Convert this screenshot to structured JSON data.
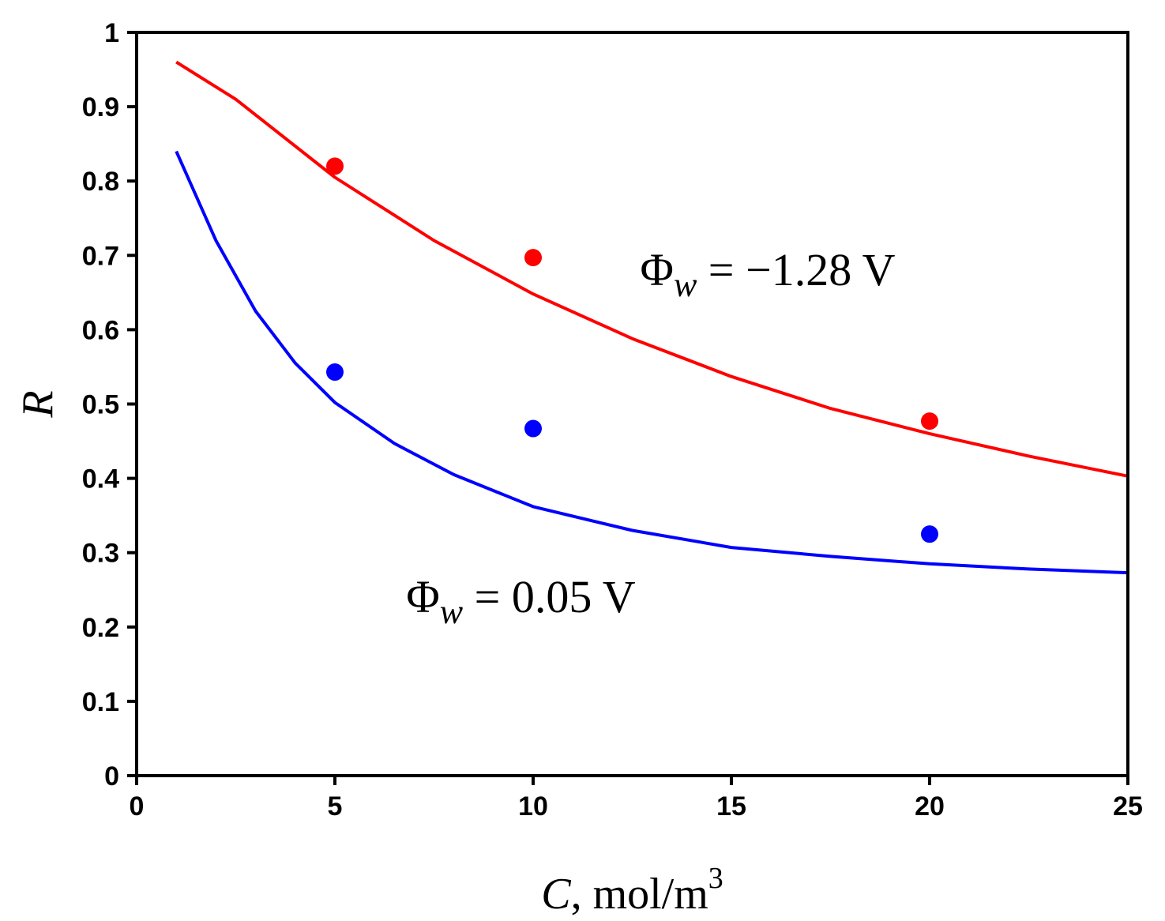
{
  "chart_data": {
    "type": "scatter",
    "title": "",
    "xlabel": "C, mol/m",
    "xlabel_var": "C",
    "xlabel_unit": "mol/m",
    "xlabel_sup": "3",
    "ylabel": "R",
    "xlim": [
      0,
      25
    ],
    "ylim": [
      0,
      1
    ],
    "xticks": [
      "0",
      "5",
      "10",
      "15",
      "20",
      "25"
    ],
    "yticks": [
      "0",
      "0.1",
      "0.2",
      "0.3",
      "0.4",
      "0.5",
      "0.6",
      "0.7",
      "0.8",
      "0.9",
      "1"
    ],
    "series": [
      {
        "name": "Φw = −1.28 V",
        "color": "#ff0000",
        "points": [
          {
            "x": 5,
            "y": 0.82
          },
          {
            "x": 10,
            "y": 0.697
          },
          {
            "x": 20,
            "y": 0.477
          }
        ],
        "fit_curve": [
          {
            "x": 1,
            "y": 0.96
          },
          {
            "x": 2.5,
            "y": 0.91
          },
          {
            "x": 5,
            "y": 0.805
          },
          {
            "x": 7.5,
            "y": 0.72
          },
          {
            "x": 10,
            "y": 0.648
          },
          {
            "x": 12.5,
            "y": 0.588
          },
          {
            "x": 15,
            "y": 0.537
          },
          {
            "x": 17.5,
            "y": 0.494
          },
          {
            "x": 20,
            "y": 0.46
          },
          {
            "x": 22.5,
            "y": 0.43
          },
          {
            "x": 25,
            "y": 0.403
          }
        ]
      },
      {
        "name": "Φw = 0.05 V",
        "color": "#0000ff",
        "points": [
          {
            "x": 5,
            "y": 0.543
          },
          {
            "x": 10,
            "y": 0.467
          },
          {
            "x": 20,
            "y": 0.325
          }
        ],
        "fit_curve": [
          {
            "x": 1,
            "y": 0.84
          },
          {
            "x": 2,
            "y": 0.72
          },
          {
            "x": 3,
            "y": 0.625
          },
          {
            "x": 4,
            "y": 0.555
          },
          {
            "x": 5,
            "y": 0.502
          },
          {
            "x": 6.5,
            "y": 0.447
          },
          {
            "x": 8,
            "y": 0.405
          },
          {
            "x": 10,
            "y": 0.362
          },
          {
            "x": 12.5,
            "y": 0.33
          },
          {
            "x": 15,
            "y": 0.307
          },
          {
            "x": 17.5,
            "y": 0.295
          },
          {
            "x": 20,
            "y": 0.285
          },
          {
            "x": 22.5,
            "y": 0.278
          },
          {
            "x": 25,
            "y": 0.273
          }
        ]
      }
    ],
    "annotations": [
      {
        "symbol": "Φ",
        "sub": "w",
        "rest": " = −1.28 V",
        "x": 12.7,
        "y": 0.66
      },
      {
        "symbol": "Φ",
        "sub": "w",
        "rest": " = 0.05 V",
        "x": 6.8,
        "y": 0.22
      }
    ]
  }
}
